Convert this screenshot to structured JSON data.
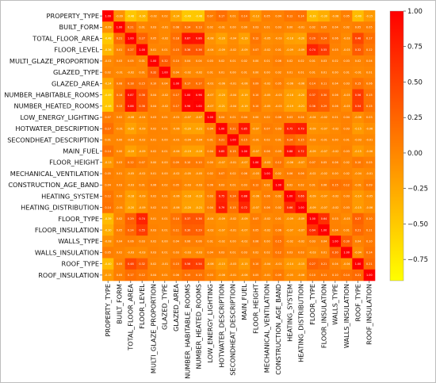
{
  "chart_data": {
    "type": "heatmap",
    "title": "",
    "xlabel": "",
    "ylabel": "",
    "variables": [
      "PROPERTY_TYPE",
      "BUILT_FORM",
      "TOTAL_FLOOR_AREA",
      "FLOOR_LEVEL",
      "MULTI_GLAZE_PROPORTION",
      "GLAZED_TYPE",
      "GLAZED_AREA",
      "NUMBER_HABITABLE_ROOMS",
      "NUMBER_HEATED_ROOMS",
      "LOW_ENERGY_LIGHTING",
      "HOTWATER_DESCRIPTION",
      "SECONDHEAT_DESCRIPTION",
      "MAIN_FUEL",
      "FLOOR_HEIGHT",
      "MECHANICAL_VENTILATION",
      "CONSTRUCTION_AGE_BAND",
      "HEATING_SYSTEM",
      "HEATING_DISTRIBUTION",
      "FLOOR_TYPE",
      "FLOOR_INSULATION",
      "WALLS_TYPE",
      "WALLS_INSULATION",
      "ROOF_TYPE",
      "ROOF_INSULATION"
    ],
    "matrix": [
      [
        1.0,
        -0.09,
        -0.48,
        -0.36,
        -0.02,
        0.02,
        -0.24,
        -0.49,
        -0.48,
        0.07,
        0.17,
        0.01,
        0.14,
        -0.13,
        0.05,
        0.04,
        0.12,
        0.14,
        -0.39,
        -0.3,
        -0.08,
        0.05,
        -0.4,
        -0.15
      ],
      [
        -0.09,
        1.0,
        0.21,
        0.01,
        0.03,
        -0.01,
        0.08,
        0.14,
        0.13,
        0.02,
        -0.01,
        0.0,
        0.0,
        0.03,
        0.01,
        0.03,
        0.0,
        -0.01,
        0.02,
        0.05,
        0.04,
        0.02,
        0.05,
        0.05
      ],
      [
        -0.48,
        0.21,
        1.0,
        0.27,
        0.05,
        -0.02,
        0.18,
        0.87,
        0.86,
        -0.08,
        -0.2,
        -0.04,
        -0.19,
        0.12,
        -0.05,
        -0.03,
        -0.18,
        -0.2,
        0.29,
        0.24,
        0.06,
        -0.03,
        0.48,
        0.17
      ],
      [
        -0.36,
        0.01,
        0.27,
        1.0,
        0.01,
        0.01,
        0.15,
        0.36,
        0.36,
        -0.04,
        -0.09,
        -0.02,
        -0.09,
        0.07,
        -0.02,
        0.01,
        -0.09,
        -0.09,
        0.74,
        0.55,
        0.03,
        -0.03,
        0.32,
        0.12
      ],
      [
        -0.02,
        0.03,
        0.05,
        0.01,
        1.0,
        0.32,
        0.1,
        0.04,
        0.04,
        0.03,
        0.02,
        0.01,
        0.02,
        0.0,
        0.01,
        0.06,
        0.02,
        0.02,
        0.01,
        0.03,
        0.02,
        0.03,
        0.02,
        0.04
      ],
      [
        0.02,
        -0.01,
        -0.02,
        0.01,
        0.32,
        1.0,
        0.04,
        -0.02,
        -0.02,
        0.01,
        0.01,
        0.0,
        0.01,
        0.0,
        0.0,
        0.02,
        0.01,
        0.01,
        0.01,
        0.01,
        0.0,
        0.01,
        -0.01,
        0.01
      ],
      [
        -0.24,
        0.08,
        0.18,
        0.15,
        0.1,
        0.04,
        1.0,
        0.17,
        0.17,
        -0.01,
        -0.06,
        -0.01,
        -0.06,
        0.09,
        -0.02,
        0.05,
        -0.06,
        -0.06,
        0.14,
        0.11,
        0.04,
        0.03,
        0.15,
        0.06
      ],
      [
        -0.49,
        0.14,
        0.87,
        0.36,
        0.04,
        -0.02,
        0.17,
        1.0,
        0.96,
        -0.07,
        -0.2,
        -0.04,
        -0.19,
        0.1,
        -0.05,
        -0.03,
        -0.18,
        -0.2,
        0.37,
        0.3,
        0.06,
        -0.03,
        0.56,
        0.15
      ],
      [
        -0.48,
        0.13,
        0.86,
        0.36,
        0.04,
        -0.02,
        0.17,
        0.96,
        1.0,
        -0.07,
        -0.21,
        -0.04,
        -0.19,
        0.1,
        -0.05,
        -0.03,
        -0.19,
        -0.21,
        0.36,
        0.29,
        0.06,
        -0.03,
        0.54,
        0.15
      ],
      [
        0.07,
        0.02,
        -0.08,
        -0.04,
        0.03,
        0.01,
        -0.01,
        -0.07,
        -0.07,
        1.0,
        0.04,
        0.01,
        0.04,
        0.0,
        0.02,
        0.06,
        0.03,
        0.04,
        -0.04,
        -0.02,
        0.01,
        0.04,
        -0.06,
        0.03
      ],
      [
        0.17,
        -0.01,
        -0.2,
        -0.09,
        0.02,
        0.01,
        -0.06,
        -0.2,
        -0.21,
        0.04,
        1.0,
        0.21,
        0.85,
        -0.07,
        0.07,
        0.03,
        0.75,
        0.79,
        -0.09,
        -0.07,
        -0.02,
        0.03,
        -0.15,
        -0.06
      ],
      [
        0.01,
        0.0,
        -0.04,
        -0.02,
        0.01,
        0.0,
        -0.01,
        -0.04,
        -0.04,
        0.01,
        0.21,
        1.0,
        0.15,
        -0.01,
        0.02,
        0.01,
        0.24,
        0.15,
        -0.02,
        -0.01,
        0.0,
        0.01,
        -0.03,
        -0.01
      ],
      [
        0.14,
        0.0,
        -0.19,
        -0.09,
        0.02,
        0.01,
        -0.06,
        -0.19,
        -0.19,
        0.04,
        0.85,
        0.15,
        1.0,
        -0.07,
        0.06,
        0.03,
        0.88,
        0.72,
        -0.09,
        -0.07,
        -0.02,
        0.03,
        -0.15,
        -0.06
      ],
      [
        -0.13,
        0.03,
        0.12,
        0.07,
        0.0,
        0.0,
        0.09,
        0.1,
        0.1,
        0.0,
        -0.07,
        -0.01,
        -0.07,
        1.0,
        -0.03,
        0.12,
        -0.06,
        -0.07,
        0.07,
        0.05,
        0.06,
        0.02,
        0.1,
        0.05
      ],
      [
        0.05,
        0.01,
        -0.05,
        -0.02,
        0.01,
        0.0,
        -0.02,
        -0.05,
        -0.05,
        0.02,
        0.07,
        0.02,
        0.06,
        -0.03,
        1.0,
        0.02,
        0.06,
        0.06,
        -0.02,
        -0.02,
        0.0,
        0.02,
        -0.04,
        -0.01
      ],
      [
        0.04,
        0.03,
        -0.03,
        0.01,
        0.06,
        0.02,
        0.05,
        -0.03,
        -0.03,
        0.06,
        0.03,
        0.01,
        0.03,
        0.12,
        0.02,
        1.0,
        0.02,
        0.02,
        0.01,
        0.06,
        0.15,
        0.12,
        -0.01,
        0.09
      ],
      [
        0.12,
        0.0,
        -0.18,
        -0.09,
        0.02,
        0.01,
        -0.06,
        -0.18,
        -0.19,
        0.03,
        0.75,
        0.24,
        0.88,
        -0.06,
        0.06,
        0.02,
        1.0,
        0.66,
        -0.09,
        -0.07,
        -0.02,
        0.03,
        -0.14,
        -0.05
      ],
      [
        0.14,
        -0.01,
        -0.2,
        -0.09,
        0.02,
        0.01,
        -0.06,
        -0.2,
        -0.21,
        0.04,
        0.79,
        0.15,
        0.72,
        -0.07,
        0.06,
        0.02,
        0.66,
        1.0,
        -0.09,
        -0.07,
        -0.02,
        0.03,
        -0.15,
        -0.06
      ],
      [
        -0.39,
        0.02,
        0.29,
        0.74,
        0.01,
        0.01,
        0.14,
        0.37,
        0.36,
        -0.04,
        -0.09,
        -0.02,
        -0.09,
        0.07,
        -0.02,
        0.01,
        -0.09,
        -0.09,
        1.0,
        0.64,
        0.03,
        -0.03,
        0.27,
        0.1
      ],
      [
        -0.3,
        0.05,
        0.24,
        0.55,
        0.03,
        0.01,
        0.11,
        0.3,
        0.29,
        -0.02,
        -0.07,
        -0.01,
        -0.07,
        0.05,
        -0.02,
        0.06,
        -0.07,
        -0.07,
        0.64,
        1.0,
        0.04,
        0.01,
        0.21,
        0.11
      ],
      [
        -0.08,
        0.04,
        0.06,
        0.03,
        0.02,
        0.0,
        0.04,
        0.06,
        0.06,
        0.01,
        -0.02,
        0.0,
        -0.02,
        0.06,
        0.0,
        0.15,
        -0.02,
        -0.02,
        0.03,
        0.04,
        1.0,
        0.3,
        0.04,
        0.1
      ],
      [
        0.05,
        0.02,
        -0.03,
        -0.03,
        0.03,
        0.01,
        0.03,
        -0.03,
        -0.03,
        0.04,
        0.03,
        0.01,
        0.03,
        0.02,
        0.02,
        0.12,
        0.03,
        0.03,
        -0.03,
        0.01,
        0.3,
        1.0,
        -0.04,
        0.14
      ],
      [
        -0.4,
        0.05,
        0.48,
        0.32,
        0.02,
        -0.01,
        0.15,
        0.56,
        0.54,
        -0.06,
        -0.15,
        -0.03,
        -0.15,
        0.1,
        -0.04,
        -0.01,
        -0.14,
        -0.15,
        0.27,
        0.21,
        0.04,
        -0.04,
        1.0,
        0.21
      ],
      [
        -0.15,
        0.05,
        0.17,
        0.12,
        0.04,
        0.01,
        0.06,
        0.15,
        0.15,
        0.03,
        -0.06,
        -0.01,
        -0.06,
        0.05,
        -0.01,
        0.09,
        -0.05,
        -0.06,
        0.1,
        0.11,
        0.1,
        0.14,
        0.21,
        1.0
      ]
    ],
    "value_range": [
      -0.9,
      1.0
    ],
    "colormap": "autumn_r",
    "colorbar": {
      "ticks": [
        1.0,
        0.75,
        0.5,
        0.25,
        0.0,
        -0.25,
        -0.5,
        -0.75
      ],
      "tick_labels": [
        "1.00",
        "0.75",
        "0.50",
        "0.25",
        "0.00",
        "−0.25",
        "−0.50",
        "−0.75"
      ],
      "low_color": "#ffff00",
      "high_color": "#ff0000"
    },
    "annotations": "cell values shown to two decimals",
    "legend": "colorbar right"
  }
}
